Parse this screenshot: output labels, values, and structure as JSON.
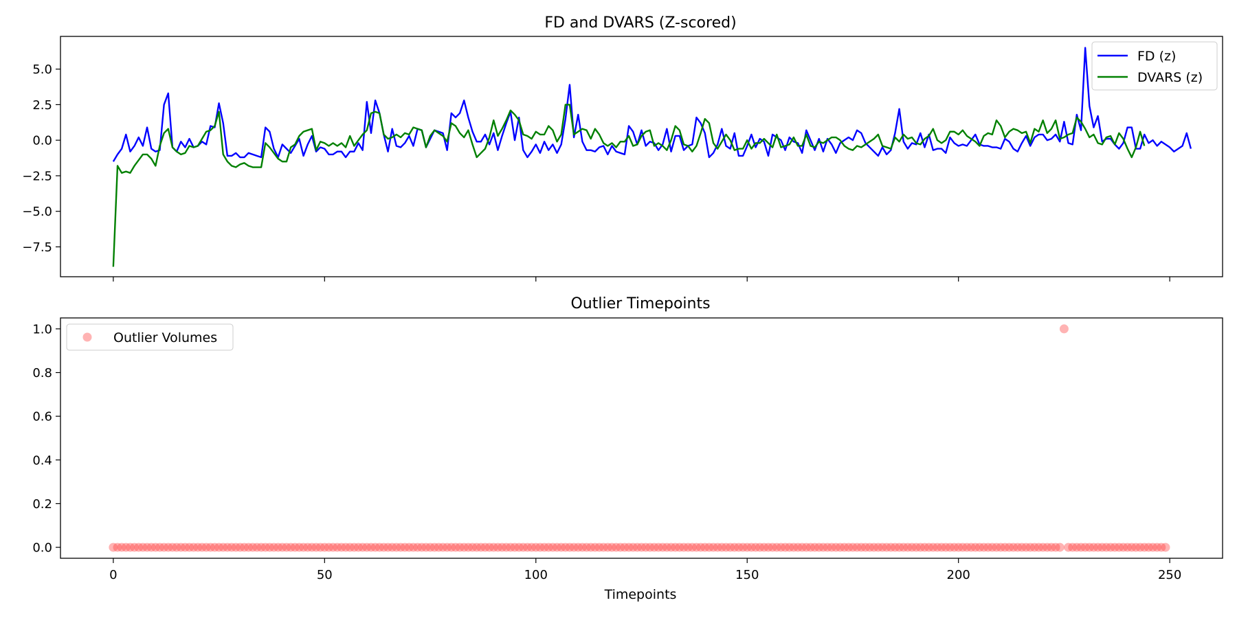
{
  "chart_data": [
    {
      "type": "line",
      "title": "FD and DVARS (Z-scored)",
      "xlabel": "",
      "ylabel": "",
      "xlim": [
        -12.5,
        262.5
      ],
      "ylim": [
        -9.6,
        7.3
      ],
      "yticks": [
        5.0,
        2.5,
        0.0,
        -2.5,
        -5.0,
        -7.5
      ],
      "ytick_labels": [
        "5.0",
        "2.5",
        "0.0",
        "−2.5",
        "−5.0",
        "−7.5"
      ],
      "xticks": [
        0,
        50,
        100,
        150,
        200,
        250
      ],
      "legend_position": "upper-right",
      "series": [
        {
          "name": "FD (z)",
          "color": "#0000ff",
          "values": [
            -1.5,
            -1.0,
            -0.6,
            0.4,
            -0.8,
            -0.4,
            0.2,
            -0.4,
            0.9,
            -0.6,
            -0.8,
            -0.7,
            2.5,
            3.3,
            -0.5,
            -0.8,
            -0.1,
            -0.5,
            0.1,
            -0.5,
            -0.4,
            -0.1,
            -0.3,
            1.0,
            0.9,
            2.6,
            1.2,
            -1.1,
            -1.1,
            -0.9,
            -1.2,
            -1.2,
            -0.9,
            -1.0,
            -1.1,
            -1.2,
            0.9,
            0.6,
            -0.6,
            -1.2,
            -0.3,
            -0.6,
            -0.9,
            -0.4,
            0.1,
            -1.1,
            -0.3,
            0.3,
            -0.8,
            -0.5,
            -0.6,
            -1.0,
            -1.0,
            -0.8,
            -0.8,
            -1.2,
            -0.8,
            -0.8,
            -0.2,
            -0.7,
            2.7,
            0.5,
            2.8,
            1.9,
            0.4,
            -0.8,
            0.8,
            -0.4,
            -0.5,
            -0.2,
            0.3,
            -0.4,
            0.8,
            0.7,
            -0.5,
            0.1,
            0.7,
            0.6,
            0.5,
            -0.7,
            1.9,
            1.6,
            1.9,
            2.8,
            1.6,
            0.6,
            -0.1,
            -0.1,
            0.4,
            -0.3,
            0.5,
            -0.7,
            0.3,
            1.2,
            2.0,
            0.0,
            1.6,
            -0.7,
            -1.2,
            -0.8,
            -0.3,
            -0.9,
            -0.1,
            -0.7,
            -0.3,
            -0.9,
            -0.3,
            1.5,
            3.9,
            0.2,
            1.8,
            -0.1,
            -0.7,
            -0.7,
            -0.8,
            -0.5,
            -0.4,
            -1.0,
            -0.4,
            -0.8,
            -0.9,
            -1.0,
            1.0,
            0.6,
            -0.3,
            0.7,
            -0.4,
            -0.1,
            -0.2,
            -0.7,
            -0.3,
            0.8,
            -0.8,
            0.3,
            0.3,
            -0.7,
            -0.4,
            -0.3,
            1.6,
            1.2,
            0.5,
            -1.2,
            -0.9,
            -0.3,
            0.8,
            -0.4,
            -0.6,
            0.5,
            -1.1,
            -1.1,
            -0.4,
            0.4,
            -0.5,
            0.1,
            -0.1,
            -1.1,
            0.4,
            0.2,
            0.0,
            -0.7,
            0.2,
            -0.1,
            -0.2,
            -0.9,
            0.7,
            0.0,
            -0.7,
            0.1,
            -0.8,
            0.1,
            -0.3,
            -0.9,
            -0.2,
            0.0,
            0.2,
            0.0,
            0.7,
            0.5,
            -0.2,
            -0.5,
            -0.8,
            -1.1,
            -0.5,
            -1.0,
            -0.7,
            0.5,
            2.2,
            -0.1,
            -0.6,
            -0.2,
            -0.3,
            0.5,
            -0.5,
            0.4,
            -0.7,
            -0.6,
            -0.6,
            -0.9,
            0.2,
            -0.2,
            -0.4,
            -0.3,
            -0.4,
            0.0,
            0.4,
            -0.3,
            -0.4,
            -0.4,
            -0.5,
            -0.5,
            -0.6,
            0.1,
            -0.1,
            -0.6,
            -0.8,
            -0.2,
            0.3,
            -0.4,
            0.2,
            0.4,
            0.4,
            0.0,
            0.1,
            0.4,
            -0.1,
            1.3,
            -0.2,
            -0.3,
            1.8,
            0.7,
            6.5,
            2.4,
            0.9,
            1.7,
            -0.1,
            0.1,
            0.1,
            -0.3,
            -0.6,
            -0.2,
            0.9,
            0.9,
            -0.6,
            -0.6,
            0.4,
            -0.2,
            0.0,
            -0.4,
            -0.1,
            -0.3,
            -0.5,
            -0.8,
            -0.6,
            -0.4,
            0.5,
            -0.6
          ]
        },
        {
          "name": "DVARS (z)",
          "color": "#008000",
          "values": [
            -8.9,
            -1.8,
            -2.3,
            -2.2,
            -2.3,
            -1.8,
            -1.4,
            -1.0,
            -1.0,
            -1.3,
            -1.8,
            -0.4,
            0.5,
            0.8,
            -0.5,
            -0.8,
            -1.0,
            -0.9,
            -0.4,
            -0.5,
            -0.4,
            0.1,
            0.6,
            0.7,
            1.0,
            2.0,
            -1.0,
            -1.5,
            -1.8,
            -1.9,
            -1.7,
            -1.6,
            -1.8,
            -1.9,
            -1.9,
            -1.9,
            -0.2,
            -0.5,
            -0.9,
            -1.3,
            -1.5,
            -1.5,
            -0.5,
            -0.3,
            0.3,
            0.6,
            0.7,
            0.8,
            -0.7,
            -0.1,
            -0.2,
            -0.4,
            -0.2,
            -0.4,
            -0.2,
            -0.5,
            0.3,
            -0.4,
            0.0,
            0.4,
            0.7,
            1.9,
            2.0,
            1.9,
            0.4,
            0.1,
            0.2,
            0.4,
            0.2,
            0.5,
            0.4,
            0.9,
            0.8,
            0.7,
            -0.5,
            0.3,
            0.7,
            0.5,
            0.3,
            -0.1,
            1.2,
            1.0,
            0.5,
            0.2,
            0.7,
            -0.3,
            -1.2,
            -0.9,
            -0.6,
            0.2,
            1.4,
            0.3,
            0.8,
            1.4,
            2.1,
            1.8,
            1.4,
            0.4,
            0.3,
            0.1,
            0.6,
            0.4,
            0.4,
            1.0,
            0.7,
            -0.1,
            0.4,
            2.5,
            2.5,
            0.4,
            0.6,
            0.8,
            0.7,
            0.1,
            0.8,
            0.4,
            -0.2,
            -0.4,
            -0.2,
            -0.5,
            -0.1,
            -0.1,
            0.3,
            -0.4,
            -0.3,
            0.3,
            0.6,
            0.7,
            -0.4,
            -0.2,
            -0.4,
            -0.7,
            0.0,
            1.0,
            0.7,
            -0.3,
            -0.4,
            -0.8,
            -0.4,
            0.5,
            1.5,
            1.2,
            -0.2,
            -0.6,
            -0.1,
            0.4,
            0.0,
            -0.7,
            -0.6,
            -0.6,
            0.0,
            -0.6,
            -0.2,
            -0.2,
            0.1,
            -0.2,
            -0.5,
            0.4,
            -0.5,
            -0.4,
            -0.3,
            0.2,
            -0.4,
            -0.4,
            0.4,
            -0.4,
            -0.5,
            -0.1,
            -0.2,
            0.0,
            0.2,
            0.2,
            0.0,
            -0.4,
            -0.6,
            -0.7,
            -0.4,
            -0.5,
            -0.3,
            -0.1,
            0.1,
            0.4,
            -0.4,
            -0.5,
            -0.6,
            0.2,
            -0.1,
            0.4,
            0.1,
            0.2,
            -0.2,
            -0.3,
            0.1,
            0.3,
            0.8,
            0.0,
            -0.2,
            0.0,
            0.6,
            0.6,
            0.4,
            0.7,
            0.3,
            0.1,
            -0.1,
            -0.4,
            0.3,
            0.5,
            0.4,
            1.4,
            1.0,
            0.2,
            0.6,
            0.8,
            0.7,
            0.5,
            0.6,
            -0.2,
            0.8,
            0.6,
            1.4,
            0.5,
            0.8,
            1.4,
            0.1,
            0.2,
            0.4,
            0.5,
            1.6,
            1.3,
            0.8,
            0.2,
            0.4,
            -0.2,
            -0.3,
            0.2,
            0.3,
            -0.3,
            0.5,
            0.1,
            -0.6,
            -1.2,
            -0.5,
            0.6,
            -0.4
          ]
        }
      ]
    },
    {
      "type": "scatter",
      "title": "Outlier Timepoints",
      "xlabel": "Timepoints",
      "ylabel": "",
      "xlim": [
        -12.5,
        262.5
      ],
      "ylim": [
        -0.05,
        1.05
      ],
      "yticks": [
        1.0,
        0.8,
        0.6,
        0.4,
        0.2,
        0.0
      ],
      "ytick_labels": [
        "1.0",
        "0.8",
        "0.6",
        "0.4",
        "0.2",
        "0.0"
      ],
      "xticks": [
        0,
        50,
        100,
        150,
        200,
        250
      ],
      "xtick_labels": [
        "0",
        "50",
        "100",
        "150",
        "200",
        "250"
      ],
      "legend_position": "upper-left",
      "series": [
        {
          "name": "Outlier Volumes",
          "color": "#ff4040",
          "outlier_index": 225,
          "count": 250
        }
      ]
    }
  ]
}
